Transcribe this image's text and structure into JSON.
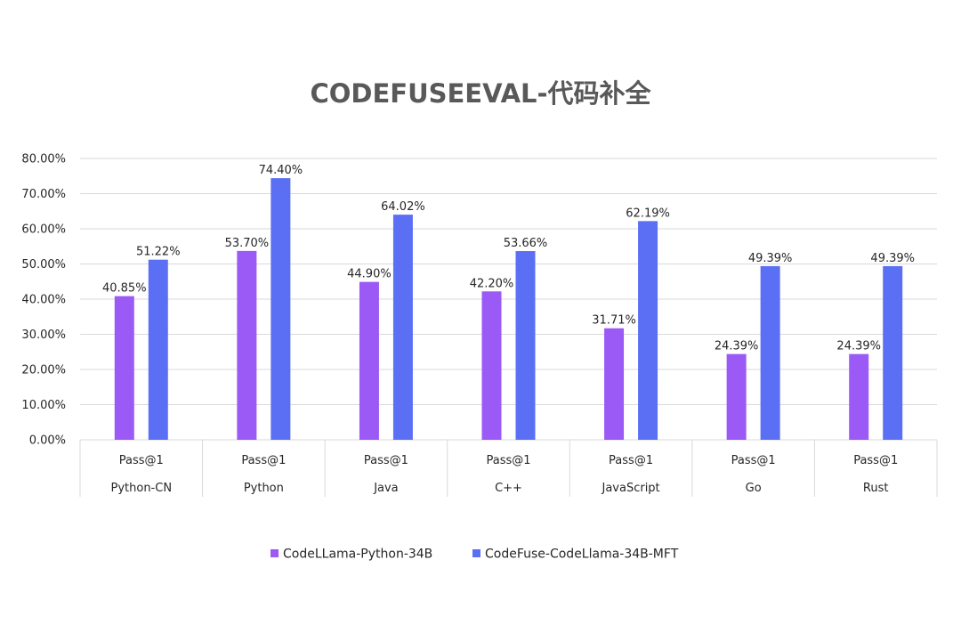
{
  "chart_data": {
    "type": "bar",
    "title": "CODEFUSEEVAL-代码补全",
    "xlabel": "",
    "ylabel": "",
    "ylim": [
      0,
      80
    ],
    "ytick_values": [
      0,
      10,
      20,
      30,
      40,
      50,
      60,
      70,
      80
    ],
    "ytick_labels": [
      "0.00%",
      "10.00%",
      "20.00%",
      "30.00%",
      "40.00%",
      "50.00%",
      "60.00%",
      "70.00%",
      "80.00%"
    ],
    "grid": true,
    "legend_position": "bottom",
    "categories": [
      {
        "metric": "Pass@1",
        "name": "Python-CN"
      },
      {
        "metric": "Pass@1",
        "name": "Python"
      },
      {
        "metric": "Pass@1",
        "name": "Java"
      },
      {
        "metric": "Pass@1",
        "name": "C++"
      },
      {
        "metric": "Pass@1",
        "name": "JavaScript"
      },
      {
        "metric": "Pass@1",
        "name": "Go"
      },
      {
        "metric": "Pass@1",
        "name": "Rust"
      }
    ],
    "series": [
      {
        "name": "CodeLLama-Python-34B",
        "color": "#9b59f6",
        "values": [
          40.85,
          53.7,
          44.9,
          42.2,
          31.71,
          24.39,
          24.39
        ],
        "labels": [
          "40.85%",
          "53.70%",
          "44.90%",
          "42.20%",
          "31.71%",
          "24.39%",
          "24.39%"
        ]
      },
      {
        "name": "CodeFuse-CodeLlama-34B-MFT",
        "color": "#5b6ff5",
        "values": [
          51.22,
          74.4,
          64.02,
          53.66,
          62.19,
          49.39,
          49.39
        ],
        "labels": [
          "51.22%",
          "74.40%",
          "64.02%",
          "53.66%",
          "62.19%",
          "49.39%",
          "49.39%"
        ]
      }
    ]
  }
}
